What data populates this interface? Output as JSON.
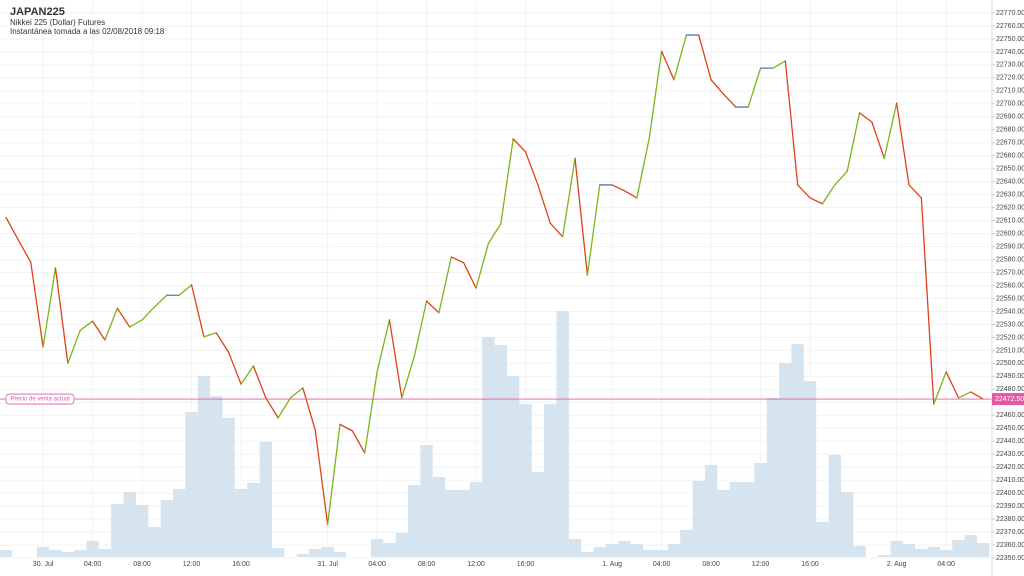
{
  "chart_data": {
    "type": "line",
    "title": "JAPAN225",
    "subtitle": "Nikkei 225 (Dollar) Futures",
    "note": "Instantánea tomada a las 02/08/2018 09:18",
    "categories": [
      null,
      null,
      null,
      "30. Jul",
      null,
      null,
      null,
      "04:00",
      null,
      null,
      null,
      "08:00",
      null,
      null,
      null,
      "12:00",
      null,
      null,
      null,
      "16:00",
      null,
      null,
      null,
      null,
      null,
      null,
      "31. Jul",
      null,
      null,
      null,
      "04:00",
      null,
      null,
      null,
      "08:00",
      null,
      null,
      null,
      "12:00",
      null,
      null,
      null,
      "16:00",
      null,
      null,
      null,
      null,
      null,
      null,
      "1. Aug",
      null,
      null,
      null,
      "04:00",
      null,
      null,
      null,
      "08:00",
      null,
      null,
      null,
      "12:00",
      null,
      null,
      null,
      "16:00",
      null,
      null,
      null,
      null,
      null,
      null,
      "2. Aug",
      null,
      null,
      null,
      "04:00",
      null,
      null,
      null
    ],
    "series": [
      {
        "values": [
          22612.5,
          22595,
          22578,
          22512.5,
          22573.5,
          22500,
          22525.5,
          22532.5,
          22518,
          22542.5,
          22528,
          22533.5,
          22543.5,
          22552.5,
          22552.5,
          22560.5,
          22520.5,
          22523.5,
          22508.5,
          22484,
          22498,
          22473.5,
          22458,
          22473.5,
          22481,
          22448.5,
          22376,
          22453,
          22448,
          22431,
          22493.5,
          22533.5,
          22473.5,
          22505,
          22548,
          22539,
          22582,
          22577.5,
          22558,
          22592.5,
          22607.5,
          22673,
          22663,
          22637.5,
          22608,
          22597.5,
          22658,
          22568,
          22637.5,
          22637.5,
          22633,
          22627.5,
          22673.5,
          22740.5,
          22718.5,
          22753,
          22753,
          22718.5,
          22707.5,
          22697.5,
          22697.5,
          22727.5,
          22727.5,
          22733,
          22637.5,
          22627.5,
          22623,
          22637.5,
          22648,
          22693,
          22686,
          22658,
          22700.5,
          22637.5,
          22627.5,
          22468.5,
          22493.5,
          22473.5,
          22478,
          22472.5
        ],
        "up_color": "#7cb518",
        "down_color": "#e0401c",
        "flat_color": "#4a7fb5"
      },
      {
        "type": "bar",
        "axis": "y2",
        "color": "#d6e4f0",
        "values": [
          7,
          0,
          0,
          10,
          7,
          5,
          7,
          16,
          8,
          53,
          65,
          52,
          30,
          57,
          68,
          145,
          181,
          161,
          139,
          68,
          74,
          115,
          9,
          0,
          3,
          8,
          10,
          5,
          0,
          0,
          18,
          14,
          24,
          72,
          112,
          80,
          67,
          67,
          75,
          220,
          212,
          181,
          153,
          85,
          153,
          246,
          18,
          5,
          10,
          13,
          16,
          13,
          7,
          7,
          13,
          27,
          76,
          92,
          67,
          75,
          75,
          94,
          159,
          194,
          213,
          176,
          35,
          102,
          65,
          11,
          0,
          2,
          16,
          13,
          8,
          10,
          7,
          17,
          22,
          14
        ]
      }
    ],
    "current_price": {
      "label": "Precio de venta actual",
      "value": 22472.5,
      "value_label": "22472.50",
      "color": "#e05aa0"
    },
    "ylim": [
      22340.8,
      22780
    ],
    "y2lim": [
      0,
      557
    ],
    "grid": true,
    "yticks": [
      {
        "value": 22350,
        "label": "22350.00"
      },
      {
        "value": 22360,
        "label": "22360.00"
      },
      {
        "value": 22370,
        "label": "22370.00"
      },
      {
        "value": 22380,
        "label": "22380.00"
      },
      {
        "value": 22390,
        "label": "22390.00"
      },
      {
        "value": 22400,
        "label": "22400.00"
      },
      {
        "value": 22410,
        "label": "22410.00"
      },
      {
        "value": 22420,
        "label": "22420.00"
      },
      {
        "value": 22430,
        "label": "22430.00"
      },
      {
        "value": 22440,
        "label": "22440.00"
      },
      {
        "value": 22450,
        "label": "22450.00"
      },
      {
        "value": 22460,
        "label": "22460.00"
      },
      {
        "value": 22470,
        "label": "22470.00"
      },
      {
        "value": 22480,
        "label": "22480.00"
      },
      {
        "value": 22490,
        "label": "22490.00"
      },
      {
        "value": 22500,
        "label": "22500.00"
      },
      {
        "value": 22510,
        "label": "22510.00"
      },
      {
        "value": 22520,
        "label": "22520.00"
      },
      {
        "value": 22530,
        "label": "22530.00"
      },
      {
        "value": 22540,
        "label": "22540.00"
      },
      {
        "value": 22550,
        "label": "22550.00"
      },
      {
        "value": 22560,
        "label": "22560.00"
      },
      {
        "value": 22570,
        "label": "22570.00"
      },
      {
        "value": 22580,
        "label": "22580.00"
      },
      {
        "value": 22590,
        "label": "22590.00"
      },
      {
        "value": 22600,
        "label": "22600.00"
      },
      {
        "value": 22610,
        "label": "22610.00"
      },
      {
        "value": 22620,
        "label": "22620.00"
      },
      {
        "value": 22630,
        "label": "22630.00"
      },
      {
        "value": 22640,
        "label": "22640.00"
      },
      {
        "value": 22650,
        "label": "22650.00"
      },
      {
        "value": 22660,
        "label": "22660.00"
      },
      {
        "value": 22670,
        "label": "22670.00"
      },
      {
        "value": 22680,
        "label": "22680.00"
      },
      {
        "value": 22690,
        "label": "22690.00"
      },
      {
        "value": 22700,
        "label": "22700.00"
      },
      {
        "value": 22710,
        "label": "22710.00"
      },
      {
        "value": 22720,
        "label": "22720.00"
      },
      {
        "value": 22730,
        "label": "22730.00"
      },
      {
        "value": 22740,
        "label": "22740.00"
      },
      {
        "value": 22750,
        "label": "22750.00"
      },
      {
        "value": 22760,
        "label": "22760.00"
      },
      {
        "value": 22770,
        "label": "22770.00"
      }
    ]
  }
}
